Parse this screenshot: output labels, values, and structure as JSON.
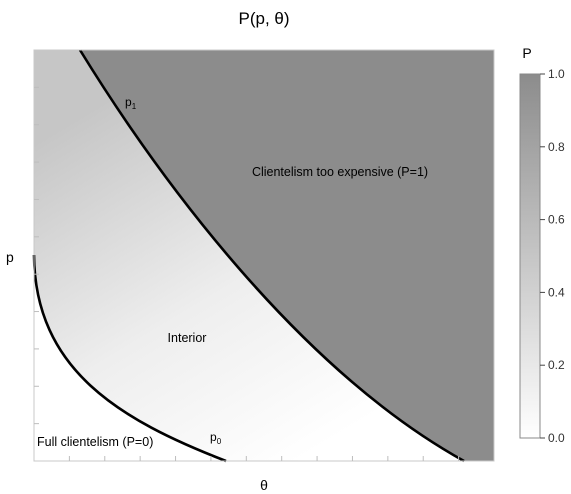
{
  "chart_data": {
    "type": "heatmap",
    "title": "P(p, θ)",
    "xlabel": "θ",
    "ylabel": "p",
    "region_labels": {
      "expensive": "Clientelism too expensive (P=1)",
      "interior": "Interior",
      "full": "Full clientelism (P=0)"
    },
    "curves": [
      {
        "name": "p",
        "subscript": "1"
      },
      {
        "name": "p",
        "subscript": "0"
      }
    ],
    "colorbar": {
      "label": "P",
      "range": [
        0,
        1
      ],
      "ticks": [
        0.0,
        0.2,
        0.4,
        0.6,
        0.8,
        1.0
      ],
      "tick_labels": [
        "0.0",
        "0.2",
        "0.4",
        "0.6",
        "0.8",
        "1.0"
      ]
    },
    "x_tick_count": 12,
    "y_tick_count": 10,
    "colors": {
      "high": "#8c8c8c",
      "low": "#ffffff",
      "curve": "#000000"
    }
  }
}
